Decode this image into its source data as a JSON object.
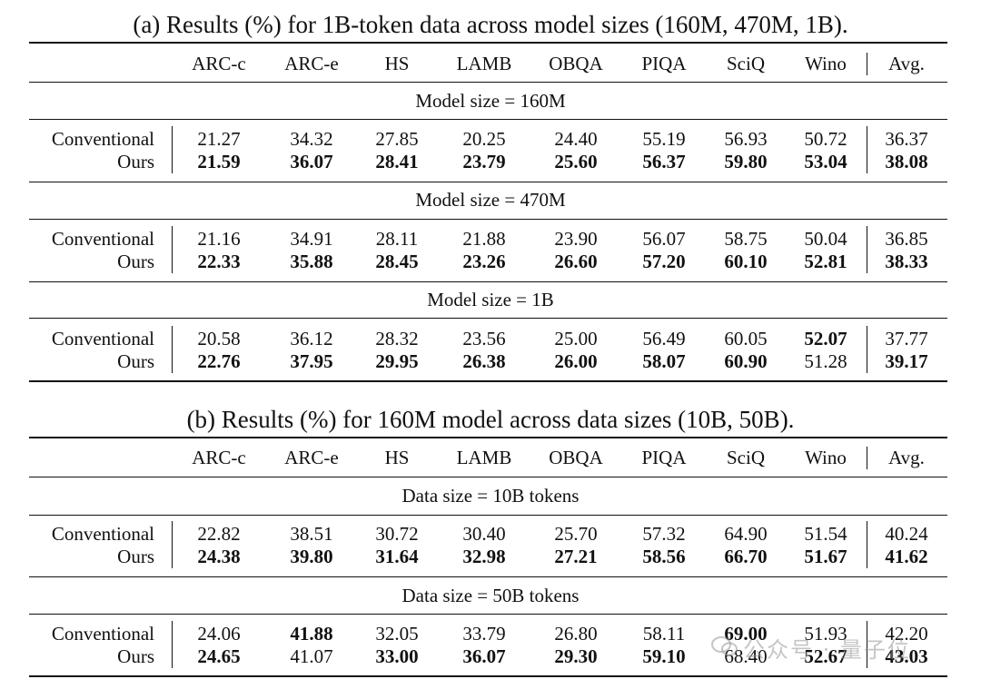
{
  "table_a": {
    "caption": "(a) Results (%) for 1B-token data across model sizes (160M, 470M, 1B).",
    "columns": [
      "ARC-c",
      "ARC-e",
      "HS",
      "LAMB",
      "OBQA",
      "PIQA",
      "SciQ",
      "Wino",
      "Avg."
    ],
    "groups": [
      {
        "header": "Model size = 160M",
        "rows": [
          {
            "label": "Conventional",
            "values": [
              "21.27",
              "34.32",
              "27.85",
              "20.25",
              "24.40",
              "55.19",
              "56.93",
              "50.72",
              "36.37"
            ],
            "bold": [
              false,
              false,
              false,
              false,
              false,
              false,
              false,
              false,
              false
            ]
          },
          {
            "label": "Ours",
            "values": [
              "21.59",
              "36.07",
              "28.41",
              "23.79",
              "25.60",
              "56.37",
              "59.80",
              "53.04",
              "38.08"
            ],
            "bold": [
              true,
              true,
              true,
              true,
              true,
              true,
              true,
              true,
              true
            ]
          }
        ]
      },
      {
        "header": "Model size = 470M",
        "rows": [
          {
            "label": "Conventional",
            "values": [
              "21.16",
              "34.91",
              "28.11",
              "21.88",
              "23.90",
              "56.07",
              "58.75",
              "50.04",
              "36.85"
            ],
            "bold": [
              false,
              false,
              false,
              false,
              false,
              false,
              false,
              false,
              false
            ]
          },
          {
            "label": "Ours",
            "values": [
              "22.33",
              "35.88",
              "28.45",
              "23.26",
              "26.60",
              "57.20",
              "60.10",
              "52.81",
              "38.33"
            ],
            "bold": [
              true,
              true,
              true,
              true,
              true,
              true,
              true,
              true,
              true
            ]
          }
        ]
      },
      {
        "header": "Model size = 1B",
        "rows": [
          {
            "label": "Conventional",
            "values": [
              "20.58",
              "36.12",
              "28.32",
              "23.56",
              "25.00",
              "56.49",
              "60.05",
              "52.07",
              "37.77"
            ],
            "bold": [
              false,
              false,
              false,
              false,
              false,
              false,
              false,
              true,
              false
            ]
          },
          {
            "label": "Ours",
            "values": [
              "22.76",
              "37.95",
              "29.95",
              "26.38",
              "26.00",
              "58.07",
              "60.90",
              "51.28",
              "39.17"
            ],
            "bold": [
              true,
              true,
              true,
              true,
              true,
              true,
              true,
              false,
              true
            ]
          }
        ]
      }
    ]
  },
  "table_b": {
    "caption": "(b) Results (%) for 160M model across data sizes (10B, 50B).",
    "columns": [
      "ARC-c",
      "ARC-e",
      "HS",
      "LAMB",
      "OBQA",
      "PIQA",
      "SciQ",
      "Wino",
      "Avg."
    ],
    "groups": [
      {
        "header": "Data size = 10B tokens",
        "rows": [
          {
            "label": "Conventional",
            "values": [
              "22.82",
              "38.51",
              "30.72",
              "30.40",
              "25.70",
              "57.32",
              "64.90",
              "51.54",
              "40.24"
            ],
            "bold": [
              false,
              false,
              false,
              false,
              false,
              false,
              false,
              false,
              false
            ]
          },
          {
            "label": "Ours",
            "values": [
              "24.38",
              "39.80",
              "31.64",
              "32.98",
              "27.21",
              "58.56",
              "66.70",
              "51.67",
              "41.62"
            ],
            "bold": [
              true,
              true,
              true,
              true,
              true,
              true,
              true,
              true,
              true
            ]
          }
        ]
      },
      {
        "header": "Data size = 50B tokens",
        "rows": [
          {
            "label": "Conventional",
            "values": [
              "24.06",
              "41.88",
              "32.05",
              "33.79",
              "26.80",
              "58.11",
              "69.00",
              "51.93",
              "42.20"
            ],
            "bold": [
              false,
              true,
              false,
              false,
              false,
              false,
              true,
              false,
              false
            ]
          },
          {
            "label": "Ours",
            "values": [
              "24.65",
              "41.07",
              "33.00",
              "36.07",
              "29.30",
              "59.10",
              "68.40",
              "52.67",
              "43.03"
            ],
            "bold": [
              true,
              false,
              true,
              true,
              true,
              true,
              false,
              true,
              true
            ]
          }
        ]
      }
    ]
  },
  "watermark": {
    "text": "公众号 · 量子位",
    "icon": "wechat-logo-icon"
  }
}
